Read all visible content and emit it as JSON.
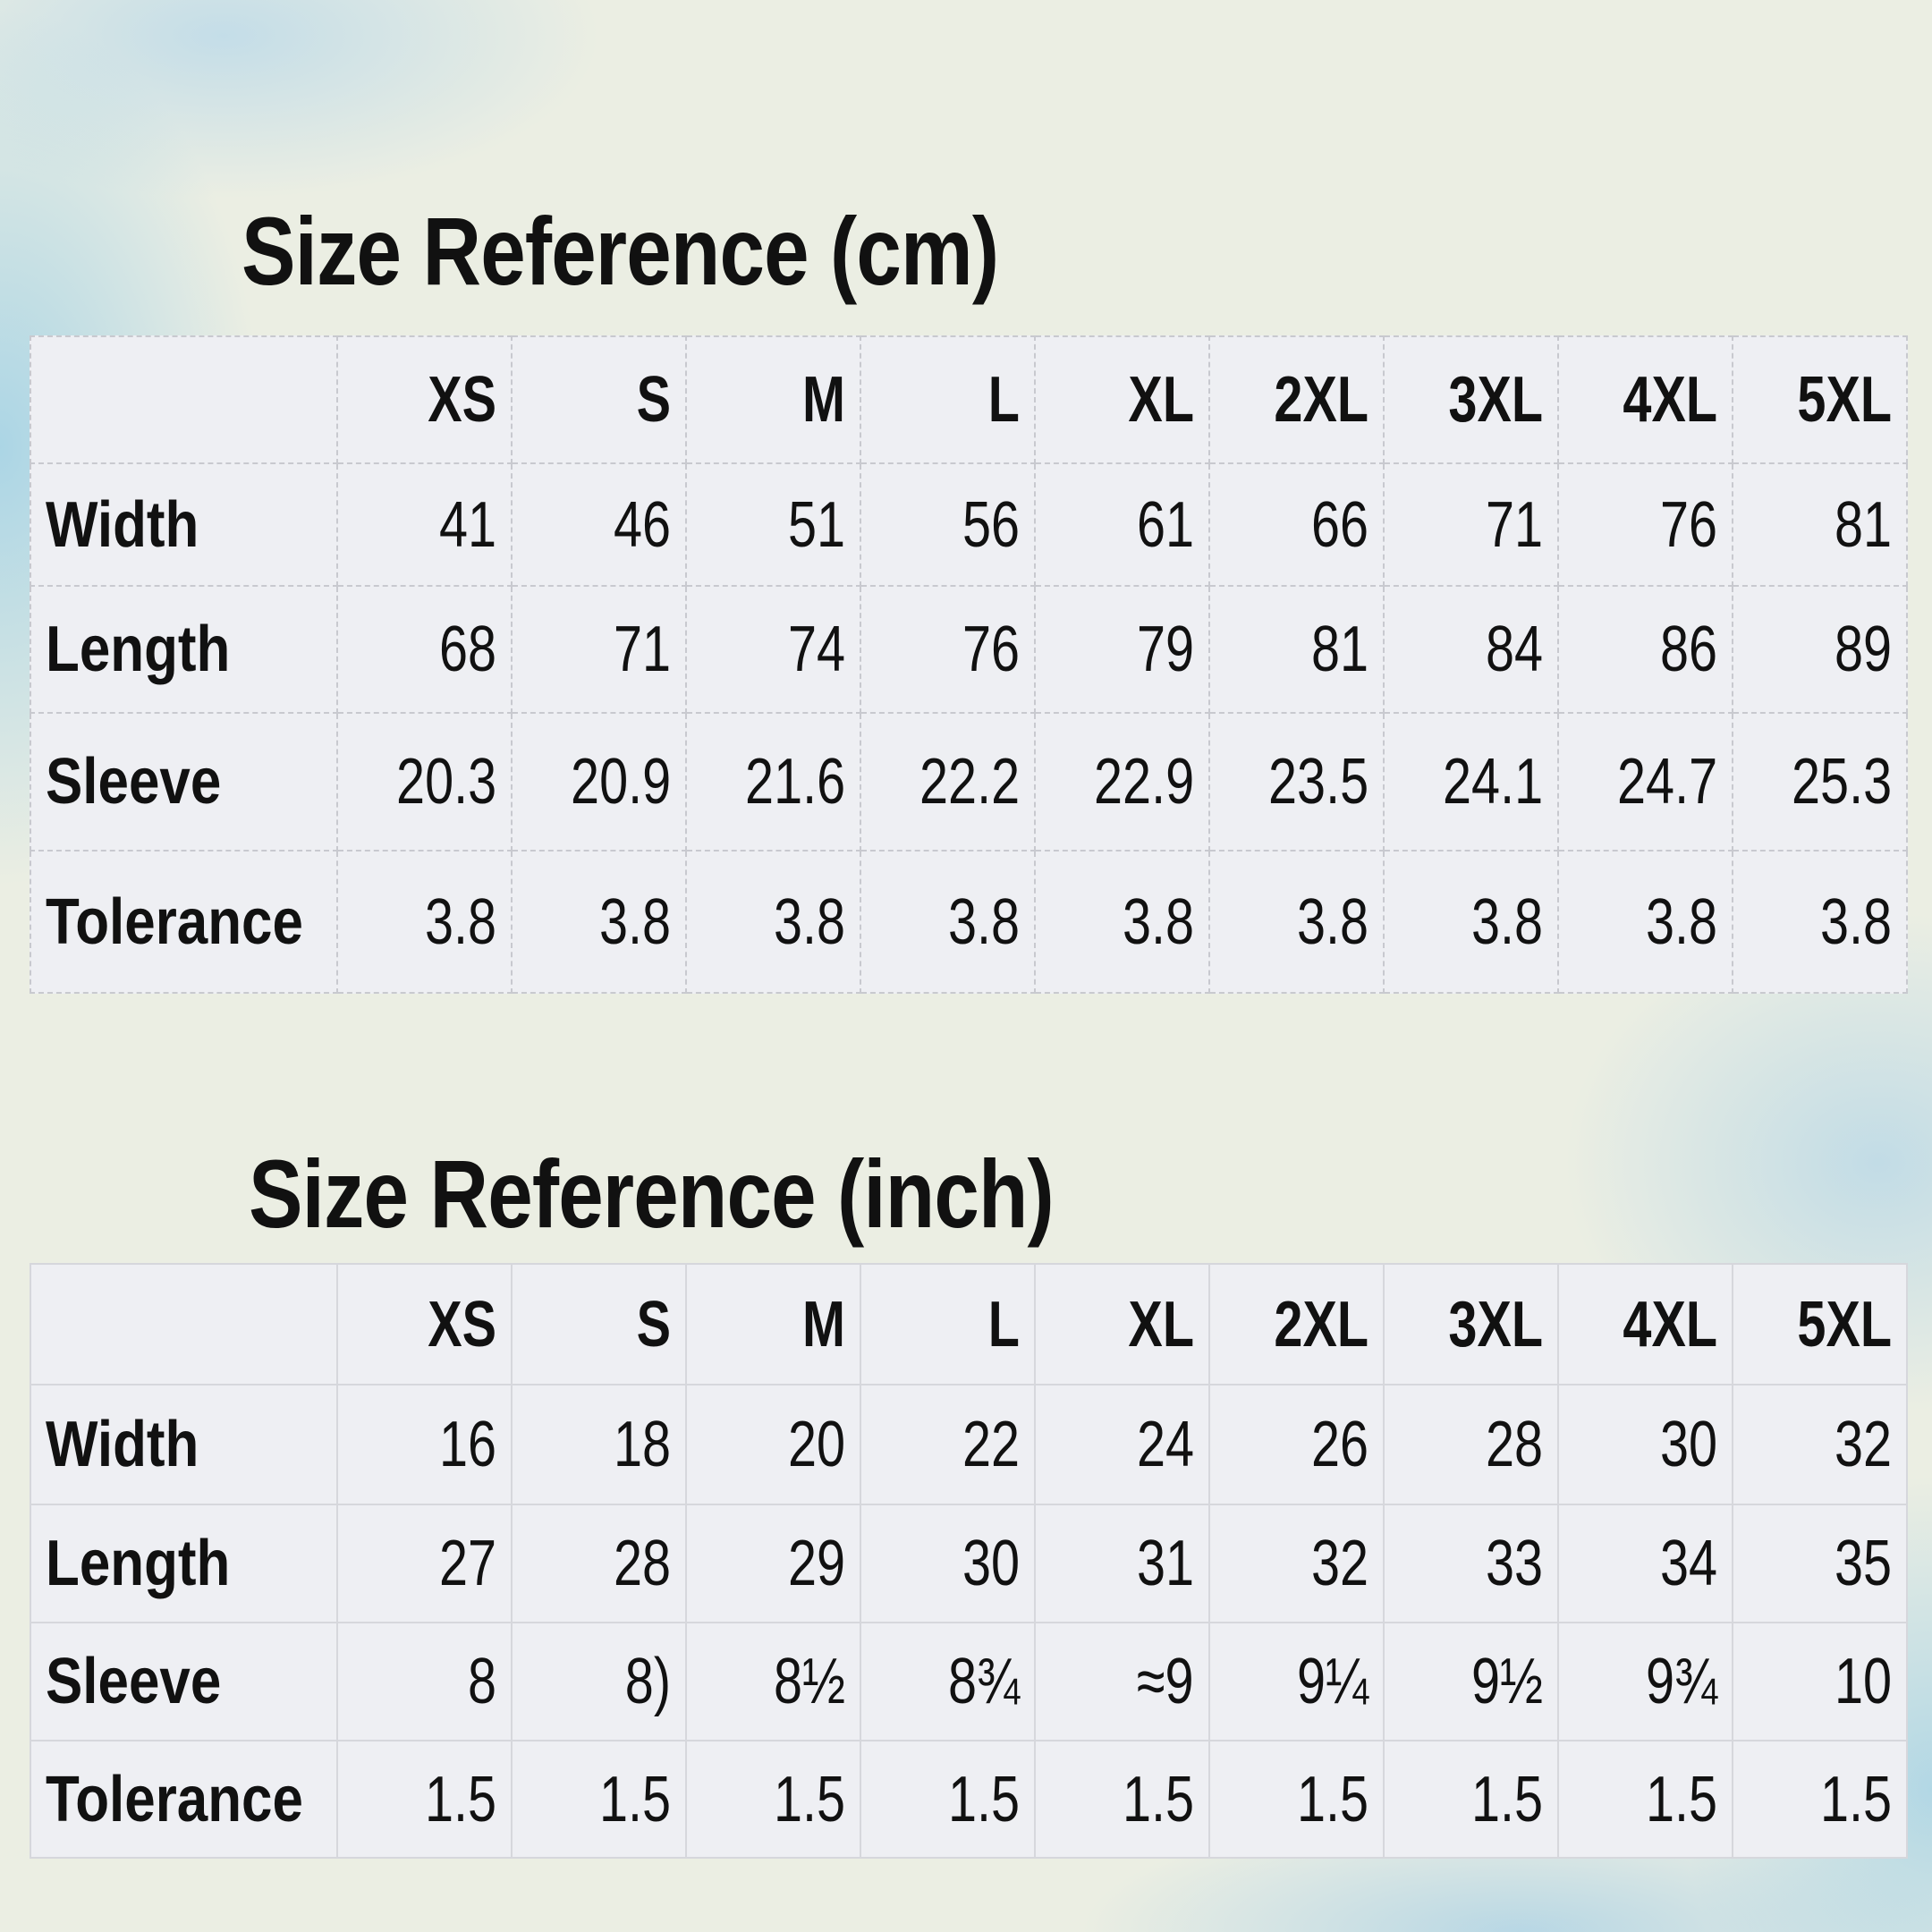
{
  "cm": {
    "title": "Size Reference (cm)",
    "sizes": [
      "XS",
      "S",
      "M",
      "L",
      "XL",
      "2XL",
      "3XL",
      "4XL",
      "5XL"
    ],
    "rows": [
      {
        "label": "Width",
        "values": [
          "41",
          "46",
          "51",
          "56",
          "61",
          "66",
          "71",
          "76",
          "81"
        ]
      },
      {
        "label": "Length",
        "values": [
          "68",
          "71",
          "74",
          "76",
          "79",
          "81",
          "84",
          "86",
          "89"
        ]
      },
      {
        "label": "Sleeve",
        "values": [
          "20.3",
          "20.9",
          "21.6",
          "22.2",
          "22.9",
          "23.5",
          "24.1",
          "24.7",
          "25.3"
        ]
      },
      {
        "label": "Tolerance",
        "values": [
          "3.8",
          "3.8",
          "3.8",
          "3.8",
          "3.8",
          "3.8",
          "3.8",
          "3.8",
          "3.8"
        ]
      }
    ]
  },
  "inch": {
    "title": "Size Reference (inch)",
    "sizes": [
      "XS",
      "S",
      "M",
      "L",
      "XL",
      "2XL",
      "3XL",
      "4XL",
      "5XL"
    ],
    "rows": [
      {
        "label": "Width",
        "values": [
          "16",
          "18",
          "20",
          "22",
          "24",
          "26",
          "28",
          "30",
          "32"
        ]
      },
      {
        "label": "Length",
        "values": [
          "27",
          "28",
          "29",
          "30",
          "31",
          "32",
          "33",
          "34",
          "35"
        ]
      },
      {
        "label": "Sleeve",
        "values": [
          "8",
          "8)",
          "8½",
          "8¾",
          "≈9",
          "9¼",
          "9½",
          "9¾",
          "10"
        ]
      },
      {
        "label": "Tolerance",
        "values": [
          "1.5",
          "1.5",
          "1.5",
          "1.5",
          "1.5",
          "1.5",
          "1.5",
          "1.5",
          "1.5"
        ]
      }
    ]
  }
}
